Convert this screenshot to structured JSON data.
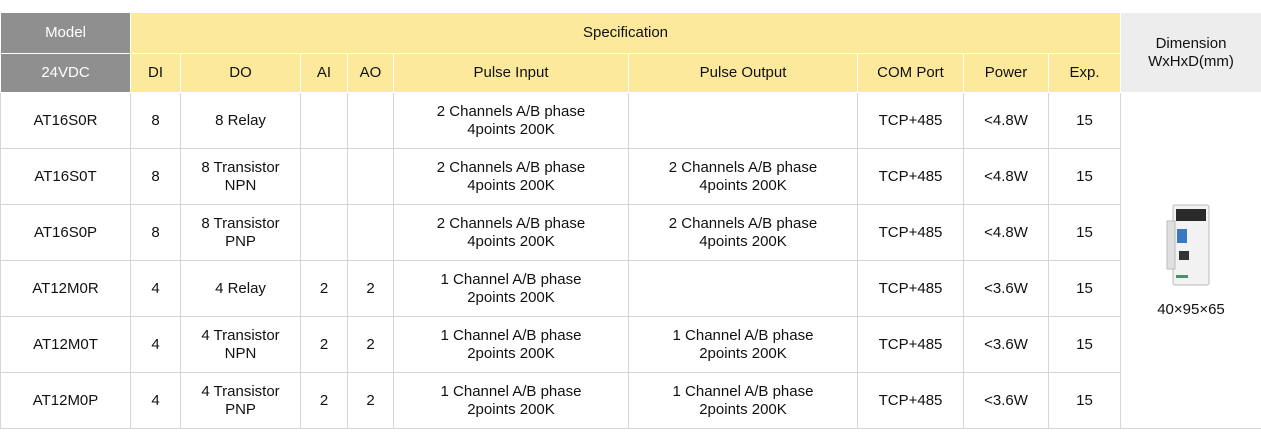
{
  "header": {
    "model": "Model",
    "specification": "Specification",
    "dimension": [
      "Dimension",
      "WxHxD(mm)"
    ],
    "voltage": "24VDC",
    "columns": [
      "DI",
      "DO",
      "AI",
      "AO",
      "Pulse Input",
      "Pulse Output",
      "COM Port",
      "Power",
      "Exp."
    ]
  },
  "rows": [
    [
      "AT16S0R",
      8,
      [
        "8 Relay"
      ],
      null,
      null,
      [
        "2 Channels A/B phase",
        "4points 200K"
      ],
      null,
      "TCP+485",
      "<4.8W",
      15
    ],
    [
      "AT16S0T",
      8,
      [
        "8 Transistor",
        "NPN"
      ],
      null,
      null,
      [
        "2 Channels A/B phase",
        "4points 200K"
      ],
      [
        "2 Channels A/B phase",
        "4points 200K"
      ],
      "TCP+485",
      "<4.8W",
      15
    ],
    [
      "AT16S0P",
      8,
      [
        "8 Transistor",
        "PNP"
      ],
      null,
      null,
      [
        "2 Channels A/B phase",
        "4points 200K"
      ],
      [
        "2 Channels A/B phase",
        "4points 200K"
      ],
      "TCP+485",
      "<4.8W",
      15
    ],
    [
      "AT12M0R",
      4,
      [
        "4 Relay"
      ],
      2,
      2,
      [
        "1 Channel A/B phase",
        "2points 200K"
      ],
      null,
      "TCP+485",
      "<3.6W",
      15
    ],
    [
      "AT12M0T",
      4,
      [
        "4 Transistor",
        "NPN"
      ],
      2,
      2,
      [
        "1 Channel A/B phase",
        "2points 200K"
      ],
      [
        "1 Channel A/B phase",
        "2points 200K"
      ],
      "TCP+485",
      "<3.6W",
      15
    ],
    [
      "AT12M0P",
      4,
      [
        "4 Transistor",
        "PNP"
      ],
      2,
      2,
      [
        "1 Channel A/B phase",
        "2points 200K"
      ],
      [
        "1 Channel A/B phase",
        "2points 200K"
      ],
      "TCP+485",
      "<3.6W",
      15
    ]
  ],
  "dimension_value": "40×95×65"
}
